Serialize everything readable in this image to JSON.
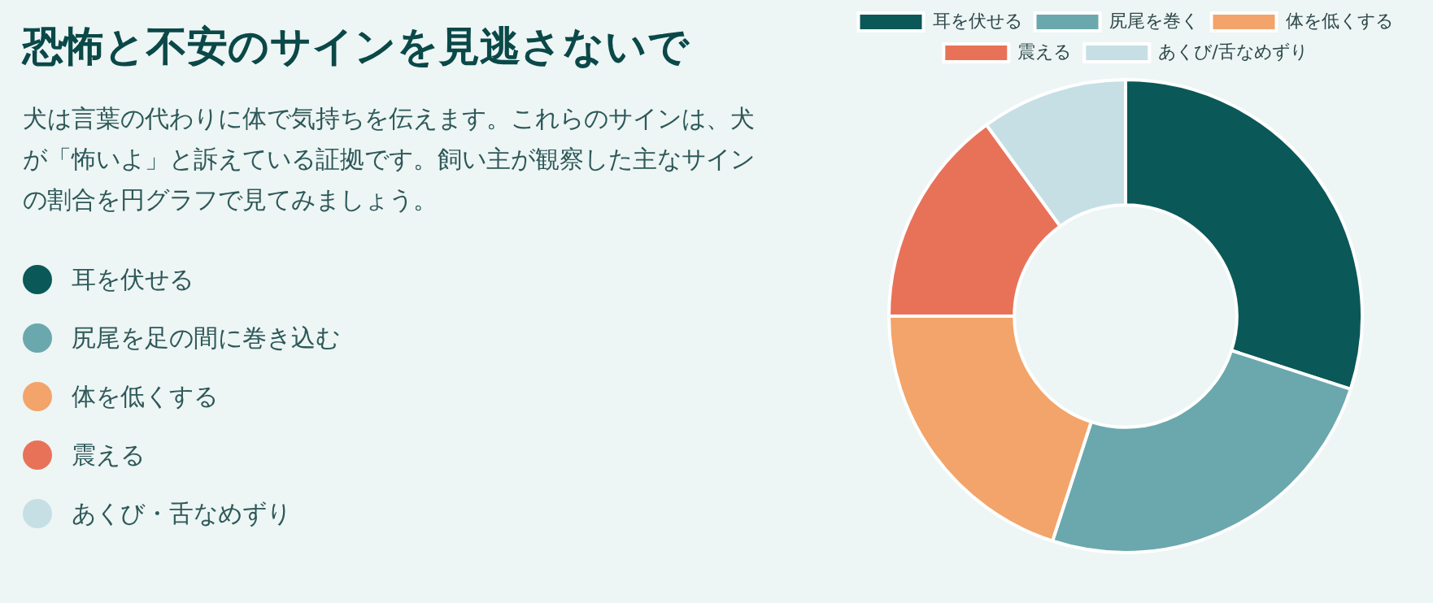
{
  "chart_data": {
    "type": "donut",
    "title": "恐怖と不安のサインを見逃さないで",
    "subtitle": "犬は言葉の代わりに体で気持ちを伝えます。これらのサインは、犬が「怖いよ」と訴えている証拠です。飼い主が観察した主なサインの割合を円グラフで見てみましょう。",
    "annotations": [
      "耳を伏せる",
      "尻尾を足の間に巻き込む",
      "体を低くする",
      "震える",
      "あくび・舌なめずり"
    ],
    "categories": [
      "耳を伏せる",
      "尻尾を巻く",
      "体を低くする",
      "震える",
      "あくび/舌なめずり"
    ],
    "values": [
      30,
      25,
      20,
      15,
      10
    ],
    "colors": [
      "#0b5858",
      "#6aa8ad",
      "#f2a46a",
      "#e87258",
      "#c5dfe5"
    ],
    "legend": "top"
  }
}
